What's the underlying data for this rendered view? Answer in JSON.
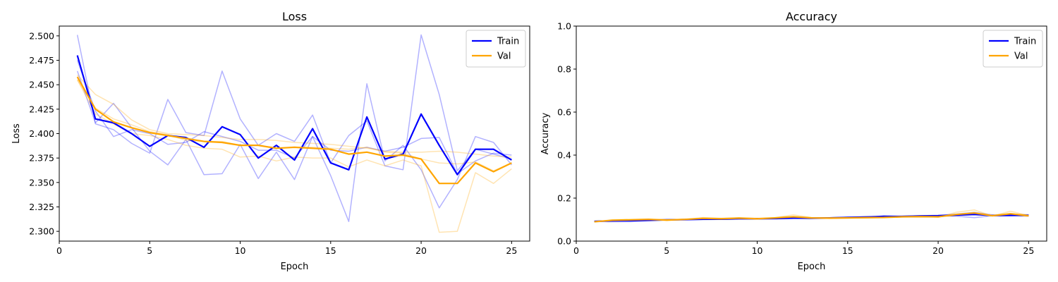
{
  "chart_data": [
    {
      "type": "line",
      "title": "Loss",
      "xlabel": "Epoch",
      "ylabel": "Loss",
      "xlim": [
        0,
        26
      ],
      "ylim": [
        2.29,
        2.51
      ],
      "xticks": [
        "0",
        "5",
        "10",
        "15",
        "20",
        "25"
      ],
      "yticks": [
        "2.300",
        "2.325",
        "2.350",
        "2.375",
        "2.400",
        "2.425",
        "2.450",
        "2.475",
        "2.500"
      ],
      "legend": "top-right",
      "x": [
        1,
        2,
        3,
        4,
        5,
        6,
        7,
        8,
        9,
        10,
        11,
        12,
        13,
        14,
        15,
        16,
        17,
        18,
        19,
        20,
        21,
        22,
        23,
        24,
        25
      ],
      "series": [
        {
          "name": "Train",
          "color": "#0000ff",
          "emphasis": "mean",
          "values": [
            2.48,
            2.415,
            2.411,
            2.4,
            2.387,
            2.398,
            2.396,
            2.386,
            2.407,
            2.399,
            2.375,
            2.388,
            2.373,
            2.405,
            2.37,
            2.363,
            2.417,
            2.374,
            2.379,
            2.42,
            2.388,
            2.358,
            2.384,
            2.384,
            2.373
          ]
        },
        {
          "name": "Val",
          "color": "#ffa500",
          "emphasis": "mean",
          "values": [
            2.458,
            2.425,
            2.412,
            2.406,
            2.401,
            2.398,
            2.395,
            2.392,
            2.391,
            2.388,
            2.388,
            2.385,
            2.386,
            2.385,
            2.384,
            2.379,
            2.381,
            2.377,
            2.378,
            2.374,
            2.349,
            2.349,
            2.37,
            2.361,
            2.37
          ]
        },
        {
          "color": "#0000ff",
          "emphasis": "run",
          "values": [
            2.501,
            2.41,
            2.404,
            2.39,
            2.38,
            2.435,
            2.401,
            2.398,
            2.464,
            2.415,
            2.388,
            2.4,
            2.392,
            2.419,
            2.37,
            2.398,
            2.413,
            2.367,
            2.363,
            2.501,
            2.44,
            2.362,
            2.384,
            2.379,
            2.374
          ]
        },
        {
          "color": "#0000ff",
          "emphasis": "run",
          "values": [
            2.464,
            2.411,
            2.431,
            2.406,
            2.382,
            2.368,
            2.394,
            2.358,
            2.359,
            2.389,
            2.354,
            2.381,
            2.353,
            2.397,
            2.357,
            2.31,
            2.451,
            2.372,
            2.388,
            2.363,
            2.324,
            2.353,
            2.397,
            2.391,
            2.368
          ]
        },
        {
          "color": "#0000ff",
          "emphasis": "run",
          "values": [
            2.475,
            2.423,
            2.397,
            2.404,
            2.4,
            2.389,
            2.391,
            2.402,
            2.397,
            2.392,
            2.383,
            2.383,
            2.375,
            2.397,
            2.383,
            2.382,
            2.386,
            2.382,
            2.386,
            2.395,
            2.396,
            2.359,
            2.372,
            2.38,
            2.378
          ]
        },
        {
          "color": "#ffa500",
          "emphasis": "run",
          "values": [
            2.46,
            2.44,
            2.43,
            2.414,
            2.404,
            2.4,
            2.399,
            2.398,
            2.396,
            2.394,
            2.394,
            2.393,
            2.391,
            2.39,
            2.389,
            2.387,
            2.385,
            2.382,
            2.381,
            2.381,
            2.382,
            2.381,
            2.379,
            2.377,
            2.376
          ]
        },
        {
          "color": "#ffa500",
          "emphasis": "run",
          "values": [
            2.455,
            2.426,
            2.415,
            2.409,
            2.402,
            2.399,
            2.393,
            2.392,
            2.392,
            2.388,
            2.388,
            2.385,
            2.386,
            2.386,
            2.385,
            2.384,
            2.386,
            2.381,
            2.38,
            2.374,
            2.37,
            2.369,
            2.371,
            2.362,
            2.37
          ]
        },
        {
          "color": "#ffa500",
          "emphasis": "run",
          "values": [
            2.455,
            2.42,
            2.41,
            2.4,
            2.398,
            2.394,
            2.388,
            2.385,
            2.384,
            2.376,
            2.377,
            2.372,
            2.376,
            2.375,
            2.375,
            2.366,
            2.373,
            2.367,
            2.373,
            2.367,
            2.299,
            2.3,
            2.36,
            2.349,
            2.364
          ]
        }
      ]
    },
    {
      "type": "line",
      "title": "Accuracy",
      "xlabel": "Epoch",
      "ylabel": "Accuracy",
      "xlim": [
        0,
        26
      ],
      "ylim": [
        0.0,
        1.0
      ],
      "xticks": [
        "0",
        "5",
        "10",
        "15",
        "20",
        "25"
      ],
      "yticks": [
        "0.0",
        "0.2",
        "0.4",
        "0.6",
        "0.8",
        "1.0"
      ],
      "legend": "top-right",
      "x": [
        1,
        2,
        3,
        4,
        5,
        6,
        7,
        8,
        9,
        10,
        11,
        12,
        13,
        14,
        15,
        16,
        17,
        18,
        19,
        20,
        21,
        22,
        23,
        24,
        25
      ],
      "series": [
        {
          "name": "Train",
          "color": "#0000ff",
          "emphasis": "mean",
          "values": [
            0.092,
            0.094,
            0.095,
            0.097,
            0.099,
            0.1,
            0.102,
            0.102,
            0.104,
            0.104,
            0.105,
            0.107,
            0.107,
            0.108,
            0.11,
            0.112,
            0.115,
            0.115,
            0.117,
            0.118,
            0.121,
            0.124,
            0.119,
            0.12,
            0.12
          ]
        },
        {
          "name": "Val",
          "color": "#ffa500",
          "emphasis": "mean",
          "values": [
            0.09,
            0.097,
            0.099,
            0.101,
            0.098,
            0.101,
            0.106,
            0.104,
            0.107,
            0.104,
            0.108,
            0.113,
            0.108,
            0.107,
            0.108,
            0.109,
            0.11,
            0.113,
            0.114,
            0.113,
            0.124,
            0.131,
            0.118,
            0.127,
            0.118
          ]
        },
        {
          "color": "#0000ff",
          "emphasis": "run",
          "values": [
            0.091,
            0.09,
            0.09,
            0.094,
            0.098,
            0.099,
            0.1,
            0.101,
            0.103,
            0.103,
            0.104,
            0.106,
            0.104,
            0.106,
            0.107,
            0.109,
            0.118,
            0.113,
            0.115,
            0.117,
            0.121,
            0.13,
            0.117,
            0.118,
            0.116
          ]
        },
        {
          "color": "#0000ff",
          "emphasis": "run",
          "values": [
            0.093,
            0.096,
            0.096,
            0.098,
            0.101,
            0.101,
            0.104,
            0.103,
            0.105,
            0.105,
            0.106,
            0.109,
            0.108,
            0.109,
            0.111,
            0.113,
            0.114,
            0.116,
            0.118,
            0.12,
            0.126,
            0.134,
            0.122,
            0.124,
            0.123
          ]
        },
        {
          "color": "#0000ff",
          "emphasis": "run",
          "values": [
            0.092,
            0.095,
            0.098,
            0.099,
            0.098,
            0.1,
            0.102,
            0.101,
            0.104,
            0.104,
            0.105,
            0.106,
            0.108,
            0.109,
            0.112,
            0.114,
            0.113,
            0.116,
            0.118,
            0.117,
            0.116,
            0.109,
            0.118,
            0.117,
            0.121
          ]
        },
        {
          "color": "#ffa500",
          "emphasis": "run",
          "values": [
            0.089,
            0.1,
            0.101,
            0.103,
            0.095,
            0.1,
            0.11,
            0.106,
            0.108,
            0.102,
            0.11,
            0.122,
            0.11,
            0.105,
            0.106,
            0.109,
            0.108,
            0.112,
            0.116,
            0.111,
            0.134,
            0.145,
            0.117,
            0.139,
            0.119
          ]
        },
        {
          "color": "#ffa500",
          "emphasis": "run",
          "values": [
            0.091,
            0.095,
            0.098,
            0.1,
            0.1,
            0.102,
            0.104,
            0.104,
            0.108,
            0.106,
            0.107,
            0.108,
            0.107,
            0.108,
            0.11,
            0.11,
            0.112,
            0.113,
            0.113,
            0.114,
            0.119,
            0.124,
            0.118,
            0.122,
            0.12
          ]
        },
        {
          "color": "#ffa500",
          "emphasis": "run",
          "values": [
            0.09,
            0.096,
            0.098,
            0.1,
            0.099,
            0.101,
            0.104,
            0.102,
            0.105,
            0.104,
            0.107,
            0.109,
            0.107,
            0.108,
            0.108,
            0.108,
            0.11,
            0.114,
            0.113,
            0.114,
            0.119,
            0.124,
            0.119,
            0.12,
            0.115
          ]
        }
      ]
    }
  ]
}
